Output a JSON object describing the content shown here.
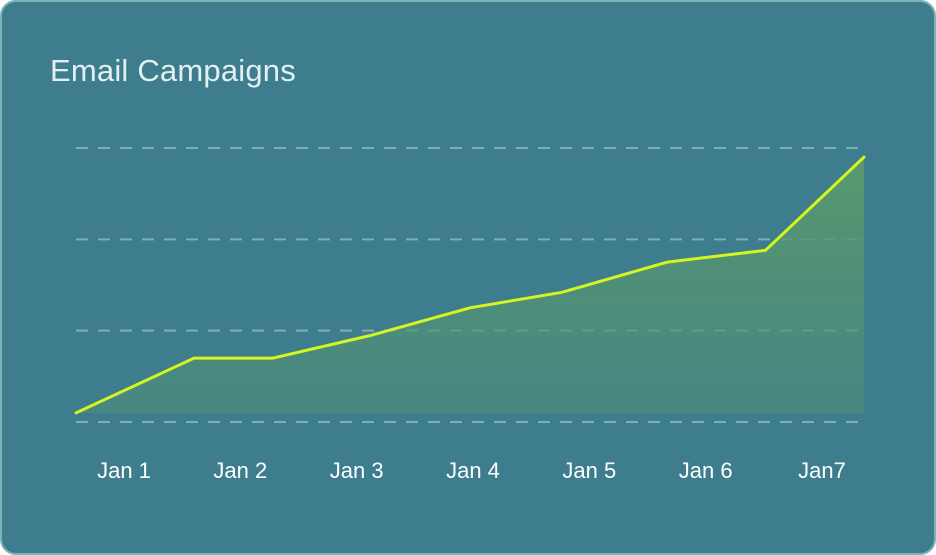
{
  "card": {
    "title": "Email Campaigns"
  },
  "colors": {
    "background": "#3d7d8d",
    "border": "#7ab3b8",
    "line": "#d4f51f",
    "area_fill": "#5a9a6c",
    "gridline": "#8ab6bc",
    "title": "#e3f0f1",
    "tick_label": "#ffffff"
  },
  "chart_data": {
    "type": "area",
    "title": "Email Campaigns",
    "xlabel": "",
    "ylabel": "",
    "grid": true,
    "categories": [
      "Jan 1",
      "Jan 2",
      "Jan 3",
      "Jan 4",
      "Jan 5",
      "Jan 6",
      "Jan7"
    ],
    "x": [
      0,
      0.9,
      1.5,
      2.25,
      3,
      3.7,
      4.5,
      5.25,
      6
    ],
    "y": [
      0.1,
      0.7,
      0.7,
      0.95,
      1.25,
      1.42,
      1.75,
      1.88,
      2.9
    ],
    "ylim": [
      0,
      3
    ]
  }
}
